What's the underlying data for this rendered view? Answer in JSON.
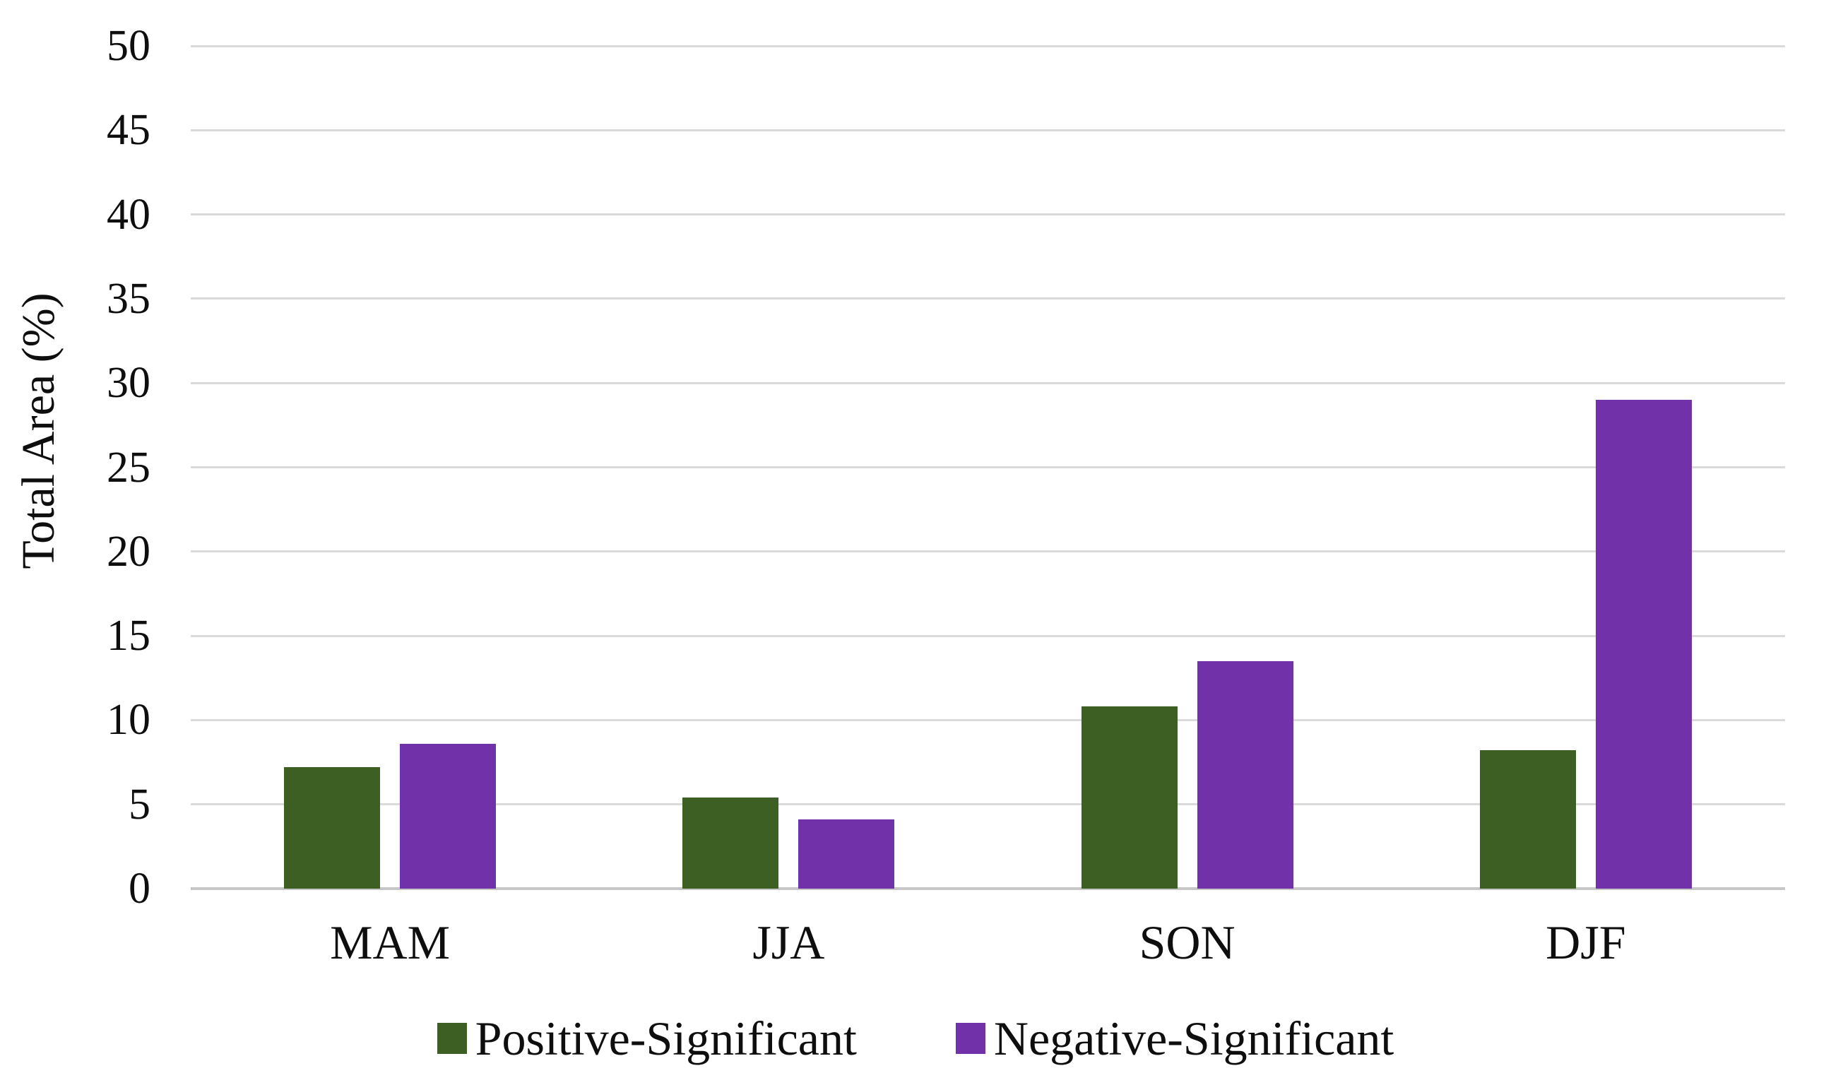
{
  "chart_data": {
    "type": "bar",
    "title": "",
    "xlabel": "",
    "ylabel": "Total Area (%)",
    "categories": [
      "MAM",
      "JJA",
      "SON",
      "DJF"
    ],
    "series": [
      {
        "name": "Positive-Significant",
        "color": "#3e5f24",
        "values": [
          7.2,
          5.4,
          10.8,
          8.2
        ]
      },
      {
        "name": "Negative-Significant",
        "color": "#7131a8",
        "values": [
          8.6,
          4.1,
          13.5,
          29.0
        ]
      }
    ],
    "ylim": [
      0,
      50
    ],
    "ytick_step": 5,
    "yticks": [
      0,
      5,
      10,
      15,
      20,
      25,
      30,
      35,
      40,
      45,
      50
    ],
    "grid": "horizontal",
    "legend_position": "bottom",
    "colors": {
      "background": "#ffffff",
      "gridline": "#dadada",
      "baseline": "#c6c6c6",
      "text": "#0e0e0e"
    }
  }
}
